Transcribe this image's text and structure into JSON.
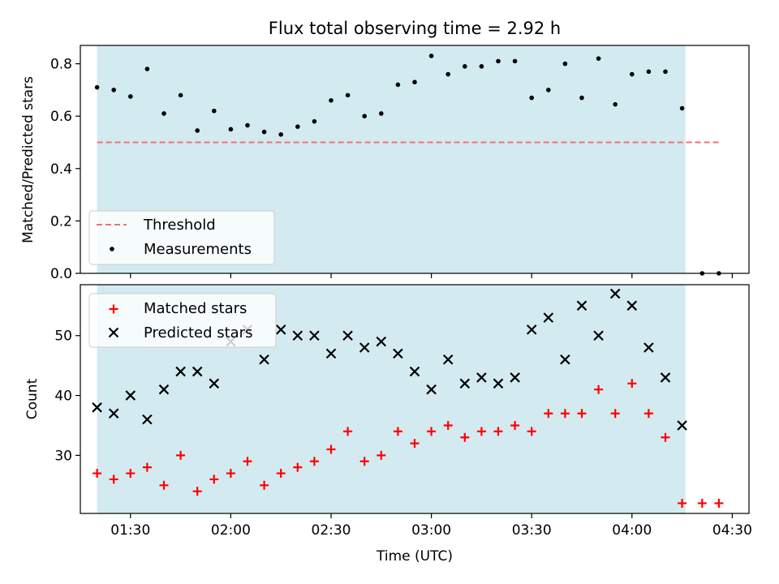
{
  "chart_data": [
    {
      "type": "scatter",
      "title": "Flux total observing time = 2.92 h",
      "xlabel": "",
      "ylabel": "Matched/Predicted stars",
      "xlim": [
        "01:15",
        "04:35"
      ],
      "ylim": [
        0,
        0.87
      ],
      "y_ticks": [
        0.0,
        0.2,
        0.4,
        0.6,
        0.8
      ],
      "y_tick_labels": [
        "0.0",
        "0.2",
        "0.4",
        "0.6",
        "0.8"
      ],
      "shaded_interval": {
        "start": "01:20",
        "end": "04:16",
        "color": "#d3eaf0"
      },
      "threshold": {
        "name": "Threshold",
        "y": 0.5,
        "x_start": "01:20",
        "x_end": "04:26",
        "color": "#f07070",
        "style": "dashed"
      },
      "legend": {
        "placement": "lower-left",
        "entries": [
          "Threshold",
          "Measurements"
        ]
      },
      "series": [
        {
          "name": "Measurements",
          "marker": "dot",
          "color": "#000000",
          "x": [
            "01:20",
            "01:25",
            "01:30",
            "01:35",
            "01:40",
            "01:45",
            "01:50",
            "01:55",
            "02:00",
            "02:05",
            "02:10",
            "02:15",
            "02:20",
            "02:25",
            "02:30",
            "02:35",
            "02:40",
            "02:45",
            "02:50",
            "02:55",
            "03:00",
            "03:05",
            "03:10",
            "03:15",
            "03:20",
            "03:25",
            "03:30",
            "03:35",
            "03:40",
            "03:45",
            "03:50",
            "03:55",
            "04:00",
            "04:05",
            "04:10",
            "04:15",
            "04:21",
            "04:26"
          ],
          "y": [
            0.71,
            0.7,
            0.675,
            0.78,
            0.61,
            0.68,
            0.545,
            0.62,
            0.55,
            0.565,
            0.54,
            0.53,
            0.56,
            0.58,
            0.66,
            0.68,
            0.6,
            0.61,
            0.72,
            0.73,
            0.83,
            0.76,
            0.79,
            0.79,
            0.81,
            0.81,
            0.67,
            0.7,
            0.8,
            0.67,
            0.82,
            0.645,
            0.76,
            0.77,
            0.77,
            0.63,
            0.0,
            0.0
          ]
        }
      ]
    },
    {
      "type": "scatter",
      "title": "",
      "xlabel": "Time (UTC)",
      "ylabel": "Count",
      "xlim": [
        "01:15",
        "04:35"
      ],
      "ylim": [
        20.3,
        58.5
      ],
      "x_ticks": [
        "01:30",
        "02:00",
        "02:30",
        "03:00",
        "03:30",
        "04:00",
        "04:30"
      ],
      "y_ticks": [
        30,
        40,
        50
      ],
      "shaded_interval": {
        "start": "01:20",
        "end": "04:16",
        "color": "#d3eaf0"
      },
      "legend": {
        "placement": "upper-left",
        "entries": [
          "Matched stars",
          "Predicted stars"
        ]
      },
      "series": [
        {
          "name": "Matched stars",
          "marker": "plus",
          "color": "#ff0000",
          "x": [
            "01:20",
            "01:25",
            "01:30",
            "01:35",
            "01:40",
            "01:45",
            "01:50",
            "01:55",
            "02:00",
            "02:05",
            "02:10",
            "02:15",
            "02:20",
            "02:25",
            "02:30",
            "02:35",
            "02:40",
            "02:45",
            "02:50",
            "02:55",
            "03:00",
            "03:05",
            "03:10",
            "03:15",
            "03:20",
            "03:25",
            "03:30",
            "03:35",
            "03:40",
            "03:45",
            "03:50",
            "03:55",
            "04:00",
            "04:05",
            "04:10",
            "04:15",
            "04:21",
            "04:26"
          ],
          "y": [
            27,
            26,
            27,
            28,
            25,
            30,
            24,
            26,
            27,
            29,
            25,
            27,
            28,
            29,
            31,
            34,
            29,
            30,
            34,
            32,
            34,
            35,
            33,
            34,
            34,
            35,
            34,
            37,
            37,
            37,
            41,
            37,
            42,
            37,
            33,
            22,
            22,
            22
          ]
        },
        {
          "name": "Predicted stars",
          "marker": "x",
          "color": "#000000",
          "x": [
            "01:20",
            "01:25",
            "01:30",
            "01:35",
            "01:40",
            "01:45",
            "01:50",
            "01:55",
            "02:00",
            "02:05",
            "02:10",
            "02:15",
            "02:20",
            "02:25",
            "02:30",
            "02:35",
            "02:40",
            "02:45",
            "02:50",
            "02:55",
            "03:00",
            "03:05",
            "03:10",
            "03:15",
            "03:20",
            "03:25",
            "03:30",
            "03:35",
            "03:40",
            "03:45",
            "03:50",
            "03:55",
            "04:00",
            "04:05",
            "04:10",
            "04:15"
          ],
          "y": [
            38,
            37,
            40,
            36,
            41,
            44,
            44,
            42,
            49,
            51,
            46,
            51,
            50,
            50,
            47,
            50,
            48,
            49,
            47,
            44,
            41,
            46,
            42,
            43,
            42,
            43,
            51,
            53,
            46,
            55,
            50,
            57,
            55,
            48,
            43,
            35
          ]
        }
      ]
    }
  ]
}
